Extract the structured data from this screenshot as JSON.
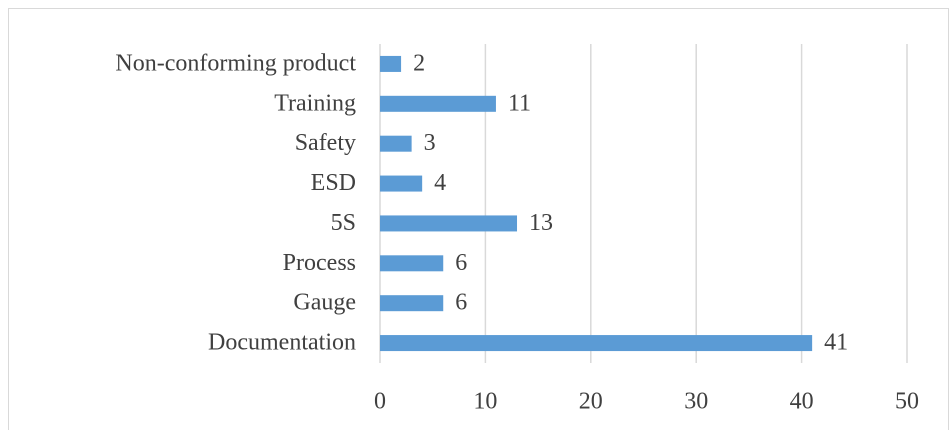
{
  "chart_data": {
    "type": "bar",
    "orientation": "horizontal",
    "categories": [
      "Non-conforming product",
      "Training",
      "Safety",
      "ESD",
      "5S",
      "Process",
      "Gauge",
      "Documentation"
    ],
    "values": [
      2,
      11,
      3,
      4,
      13,
      6,
      6,
      41
    ],
    "color": "#5b9bd5",
    "xlim": [
      0,
      50
    ],
    "xticks": [
      0,
      10,
      20,
      30,
      40,
      50
    ],
    "grid": true
  }
}
